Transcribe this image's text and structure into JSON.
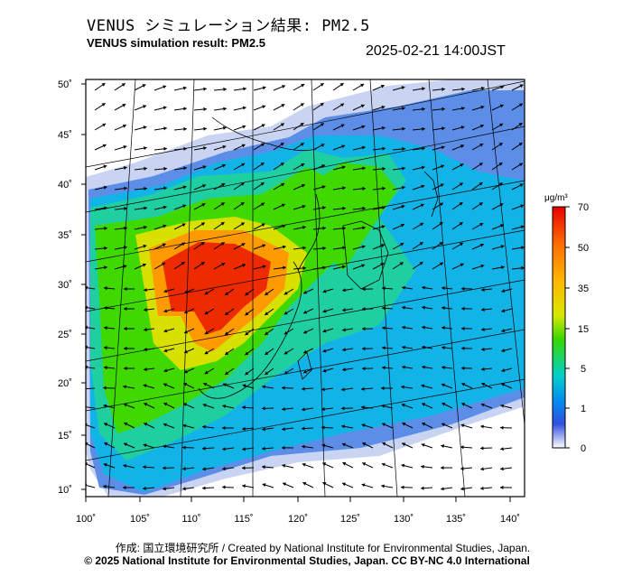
{
  "header": {
    "title_ja": "VENUS シミュレーション結果: PM2.5",
    "title_en": "VENUS simulation result: PM2.5",
    "timestamp": "2025-02-21 14:00JST"
  },
  "map": {
    "lat_ticks": [
      "50˚",
      "45˚",
      "40˚",
      "35˚",
      "30˚",
      "25˚",
      "20˚",
      "15˚",
      "10˚"
    ],
    "lon_ticks": [
      "100˚",
      "105˚",
      "110˚",
      "115˚",
      "120˚",
      "125˚",
      "130˚",
      "135˚",
      "140˚"
    ],
    "lat_values": [
      50,
      45,
      40,
      35,
      30,
      25,
      20,
      15,
      10
    ],
    "lon_values": [
      100,
      105,
      110,
      115,
      120,
      125,
      130,
      135,
      140
    ]
  },
  "colorbar": {
    "unit": "μg/m³",
    "ticks": [
      "70",
      "50",
      "35",
      "15",
      "5",
      "1",
      "0"
    ],
    "colors": [
      "#e80000",
      "#ff9a00",
      "#f0e800",
      "#38d800",
      "#00c8d8",
      "#1860f0",
      "#ffffff"
    ]
  },
  "footer": {
    "credit_line1": "作成: 国立環境研究所 / Created by National Institute for Environmental Studies, Japan.",
    "credit_line2": "© 2025 National Institute for Environmental Studies, Japan. CC BY-NC 4.0 International"
  }
}
